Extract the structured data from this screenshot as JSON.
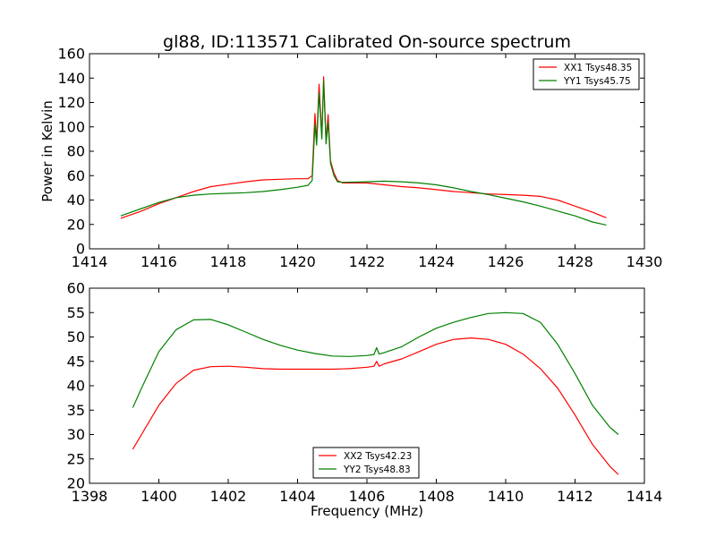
{
  "title": "gl88, ID:113571 Calibrated On-source spectrum",
  "chart_data": [
    {
      "type": "line",
      "title": "gl88, ID:113571 Calibrated On-source spectrum",
      "xlabel": "",
      "ylabel": "Power in Kelvin",
      "xlim": [
        1414,
        1430
      ],
      "ylim": [
        0,
        160
      ],
      "xticks": [
        "1414",
        "1416",
        "1418",
        "1420",
        "1422",
        "1424",
        "1426",
        "1428",
        "1430"
      ],
      "yticks": [
        "0",
        "20",
        "40",
        "60",
        "80",
        "100",
        "120",
        "140",
        "160"
      ],
      "legend": "top-right",
      "grid": false,
      "series": [
        {
          "name": "XX1 Tsys48.35",
          "color": "#ff0000",
          "x": [
            1414.9,
            1415.5,
            1416.0,
            1416.5,
            1417.0,
            1417.5,
            1418.0,
            1418.5,
            1419.0,
            1419.5,
            1420.0,
            1420.3,
            1420.42,
            1420.5,
            1420.55,
            1420.62,
            1420.7,
            1420.75,
            1420.82,
            1420.88,
            1420.95,
            1421.05,
            1421.15,
            1421.3,
            1422.0,
            1422.5,
            1423.0,
            1423.5,
            1424.0,
            1424.5,
            1425.0,
            1425.5,
            1426.0,
            1426.5,
            1427.0,
            1427.5,
            1428.0,
            1428.5,
            1428.9
          ],
          "y": [
            25,
            31,
            37,
            42,
            47,
            51,
            53,
            55,
            56.5,
            57,
            57.5,
            57.5,
            60,
            111,
            88,
            135,
            92,
            141,
            88,
            110,
            72,
            62,
            56,
            54,
            54,
            52.5,
            51,
            50,
            48.5,
            47,
            46,
            45,
            44.5,
            44,
            43,
            40,
            35,
            30,
            25.5
          ]
        },
        {
          "name": "YY1 Tsys45.75",
          "color": "#008000",
          "x": [
            1414.9,
            1415.5,
            1416.0,
            1416.5,
            1417.0,
            1417.5,
            1418.0,
            1418.5,
            1419.0,
            1419.5,
            1420.0,
            1420.3,
            1420.42,
            1420.5,
            1420.55,
            1420.62,
            1420.7,
            1420.75,
            1420.82,
            1420.88,
            1420.95,
            1421.05,
            1421.15,
            1421.3,
            1422.0,
            1422.5,
            1423.0,
            1423.5,
            1424.0,
            1424.5,
            1425.0,
            1425.5,
            1426.0,
            1426.5,
            1427.0,
            1427.5,
            1428.0,
            1428.5,
            1428.9
          ],
          "y": [
            27,
            33,
            38,
            42,
            44,
            45,
            45.5,
            46,
            47,
            48.5,
            50.5,
            52,
            56,
            102,
            85,
            128,
            90,
            138,
            86,
            104,
            70,
            60,
            55,
            54.5,
            55,
            55.5,
            55,
            54,
            52.5,
            50,
            47,
            44.5,
            41.5,
            38.5,
            35,
            31,
            27,
            22,
            19.5
          ]
        }
      ]
    },
    {
      "type": "line",
      "title": "",
      "xlabel": "Frequency (MHz)",
      "ylabel": "",
      "xlim": [
        1398,
        1414
      ],
      "ylim": [
        20,
        60
      ],
      "xticks": [
        "1398",
        "1400",
        "1402",
        "1404",
        "1406",
        "1408",
        "1410",
        "1412",
        "1414"
      ],
      "yticks": [
        "20",
        "25",
        "30",
        "35",
        "40",
        "45",
        "50",
        "55",
        "60"
      ],
      "legend": "bottom-center",
      "grid": false,
      "series": [
        {
          "name": "XX2 Tsys42.23",
          "color": "#ff0000",
          "x": [
            1399.25,
            1399.5,
            1400.0,
            1400.5,
            1401.0,
            1401.5,
            1402.0,
            1402.5,
            1403.0,
            1403.5,
            1404.0,
            1404.5,
            1405.0,
            1405.5,
            1406.0,
            1406.2,
            1406.28,
            1406.35,
            1406.5,
            1407.0,
            1407.5,
            1408.0,
            1408.5,
            1409.0,
            1409.5,
            1410.0,
            1410.5,
            1411.0,
            1411.5,
            1412.0,
            1412.5,
            1413.0,
            1413.25
          ],
          "y": [
            27,
            30,
            36,
            40.5,
            43.2,
            43.9,
            44,
            43.8,
            43.5,
            43.4,
            43.4,
            43.4,
            43.4,
            43.5,
            43.8,
            44,
            45,
            44,
            44.5,
            45.5,
            47,
            48.5,
            49.5,
            49.8,
            49.5,
            48.5,
            46.5,
            43.5,
            39.5,
            34,
            28,
            23.5,
            21.8
          ]
        },
        {
          "name": "YY2 Tsys48.83",
          "color": "#008000",
          "x": [
            1399.25,
            1399.5,
            1400.0,
            1400.5,
            1401.0,
            1401.5,
            1402.0,
            1402.5,
            1403.0,
            1403.5,
            1404.0,
            1404.5,
            1405.0,
            1405.5,
            1406.0,
            1406.2,
            1406.28,
            1406.35,
            1406.5,
            1407.0,
            1407.5,
            1408.0,
            1408.5,
            1409.0,
            1409.5,
            1410.0,
            1410.5,
            1411.0,
            1411.5,
            1412.0,
            1412.5,
            1413.0,
            1413.25
          ],
          "y": [
            35.5,
            39.5,
            47,
            51.5,
            53.5,
            53.6,
            52.5,
            51,
            49.5,
            48.3,
            47.3,
            46.6,
            46.1,
            46,
            46.2,
            46.4,
            47.8,
            46.5,
            46.8,
            48,
            50,
            51.8,
            53,
            54,
            54.8,
            55,
            54.8,
            53,
            48.5,
            42.5,
            36,
            31.5,
            30
          ]
        }
      ]
    }
  ]
}
